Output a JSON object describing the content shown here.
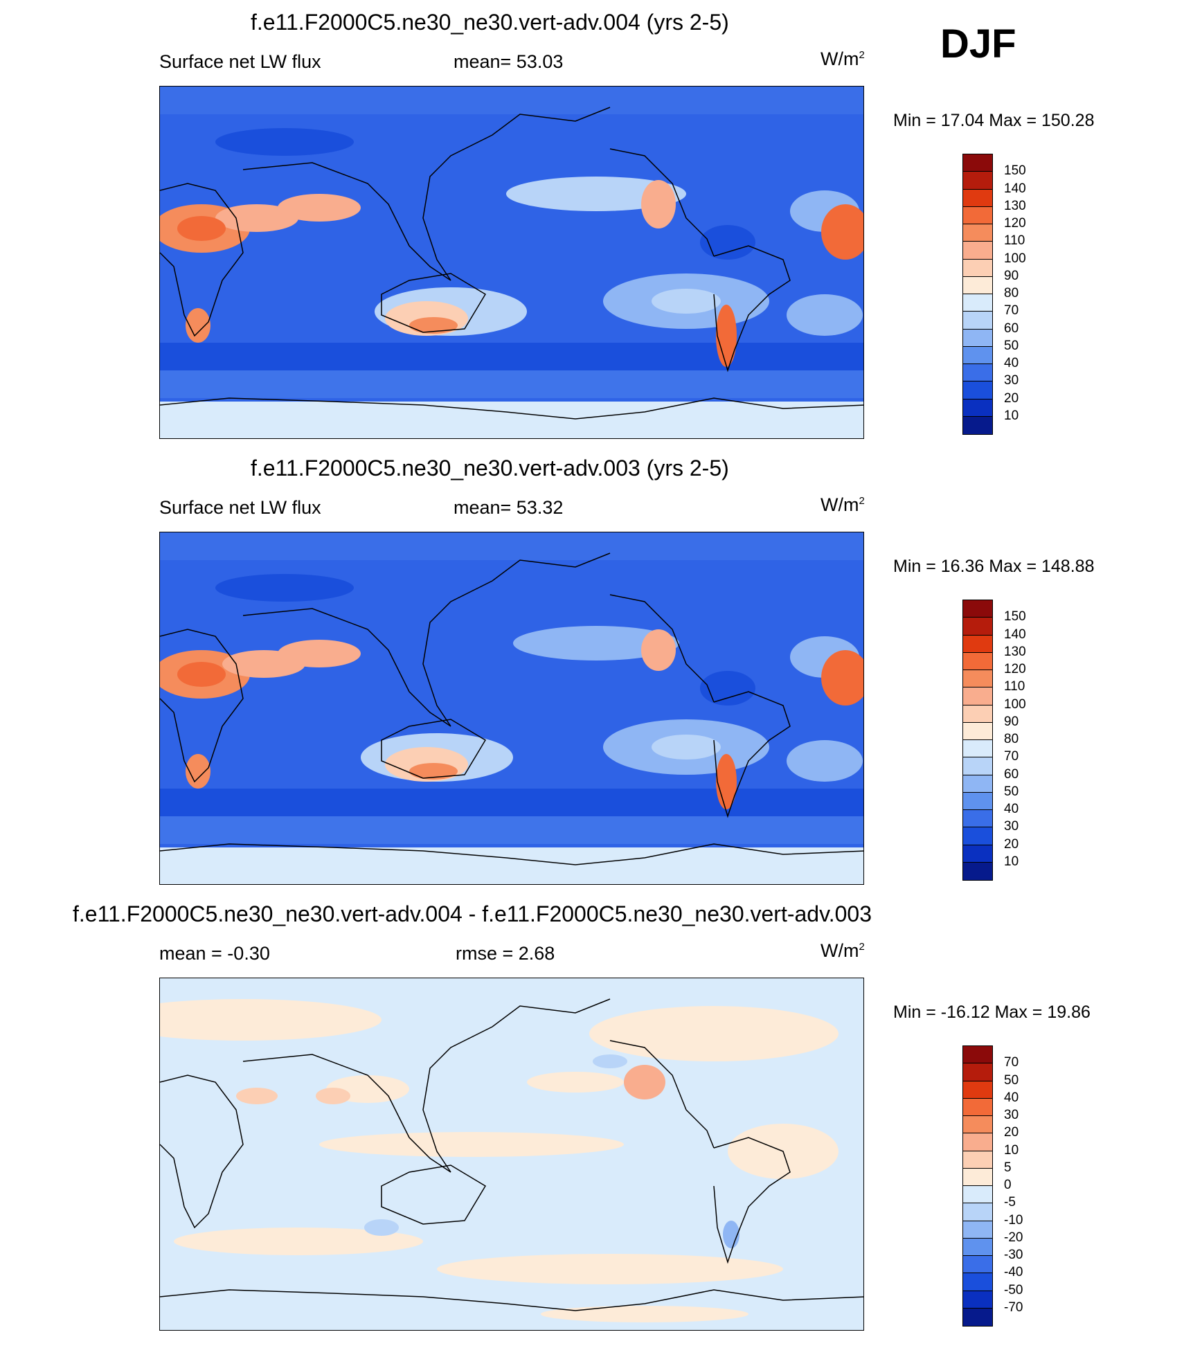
{
  "season": "DJF",
  "units_label": "W/m",
  "units_exp": "2",
  "panels": [
    {
      "title": "f.e11.F2000C5.ne30_ne30.vert-adv.004 (yrs 2-5)",
      "left_label": "Surface net LW flux",
      "center_label": "mean=  53.03",
      "minmax": "Min =  17.04 Max = 150.28"
    },
    {
      "title": "f.e11.F2000C5.ne30_ne30.vert-adv.003 (yrs 2-5)",
      "left_label": "Surface net LW flux",
      "center_label": "mean=  53.32",
      "minmax": "Min =  16.36 Max = 148.88"
    },
    {
      "title": "f.e11.F2000C5.ne30_ne30.vert-adv.004 - f.e11.F2000C5.ne30_ne30.vert-adv.003",
      "left_label": "mean =  -0.30",
      "center_label": "rmse =   2.68",
      "minmax": "Min = -16.12 Max =  19.86"
    }
  ],
  "colorbars": {
    "field": {
      "labels": [
        "150",
        "140",
        "130",
        "120",
        "110",
        "100",
        "90",
        "80",
        "70",
        "60",
        "50",
        "40",
        "30",
        "20",
        "10"
      ],
      "colors": [
        "#8b0a0a",
        "#b51c0c",
        "#e03a10",
        "#f26a38",
        "#f58c5c",
        "#f9ad8e",
        "#fccfb4",
        "#fdebd8",
        "#d9ebfb",
        "#b8d4f8",
        "#8fb6f4",
        "#5f92ee",
        "#3a6ee8",
        "#1a4fdc",
        "#0a30c0",
        "#061a8c"
      ]
    },
    "diff": {
      "labels": [
        "70",
        "50",
        "40",
        "30",
        "20",
        "10",
        "5",
        "0",
        "-5",
        "-10",
        "-20",
        "-30",
        "-40",
        "-50",
        "-70"
      ],
      "colors": [
        "#8b0a0a",
        "#b51c0c",
        "#e03a10",
        "#f26a38",
        "#f58c5c",
        "#f9ad8e",
        "#fccfb4",
        "#fdebd8",
        "#d9ebfb",
        "#b8d4f8",
        "#8fb6f4",
        "#5f92ee",
        "#3a6ee8",
        "#1a4fdc",
        "#0a30c0",
        "#061a8c"
      ]
    }
  }
}
